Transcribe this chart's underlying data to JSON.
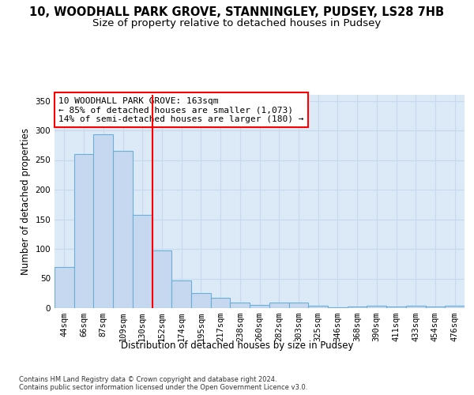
{
  "title_line1": "10, WOODHALL PARK GROVE, STANNINGLEY, PUDSEY, LS28 7HB",
  "title_line2": "Size of property relative to detached houses in Pudsey",
  "xlabel": "Distribution of detached houses by size in Pudsey",
  "ylabel": "Number of detached properties",
  "footnote": "Contains HM Land Registry data © Crown copyright and database right 2024.\nContains public sector information licensed under the Open Government Licence v3.0.",
  "categories": [
    "44sqm",
    "66sqm",
    "87sqm",
    "109sqm",
    "130sqm",
    "152sqm",
    "174sqm",
    "195sqm",
    "217sqm",
    "238sqm",
    "260sqm",
    "282sqm",
    "303sqm",
    "325sqm",
    "346sqm",
    "368sqm",
    "390sqm",
    "411sqm",
    "433sqm",
    "454sqm",
    "476sqm"
  ],
  "values": [
    70,
    260,
    293,
    265,
    158,
    98,
    47,
    25,
    18,
    10,
    6,
    9,
    9,
    4,
    1,
    3,
    4,
    3,
    4,
    3,
    4
  ],
  "bar_color": "#c5d8f0",
  "bar_edge_color": "#6baed6",
  "vline_pos": 4.5,
  "vline_label": "10 WOODHALL PARK GROVE: 163sqm",
  "annotation_line2": "← 85% of detached houses are smaller (1,073)",
  "annotation_line3": "14% of semi-detached houses are larger (180) →",
  "ylim": [
    0,
    360
  ],
  "yticks": [
    0,
    50,
    100,
    150,
    200,
    250,
    300,
    350
  ],
  "bg_color": "#dce9f7",
  "grid_color": "#c8d8ed",
  "title_fontsize": 10.5,
  "subtitle_fontsize": 9.5,
  "axis_label_fontsize": 8.5,
  "annot_fontsize": 8,
  "tick_fontsize": 7.5,
  "ylabel_fontsize": 8.5
}
